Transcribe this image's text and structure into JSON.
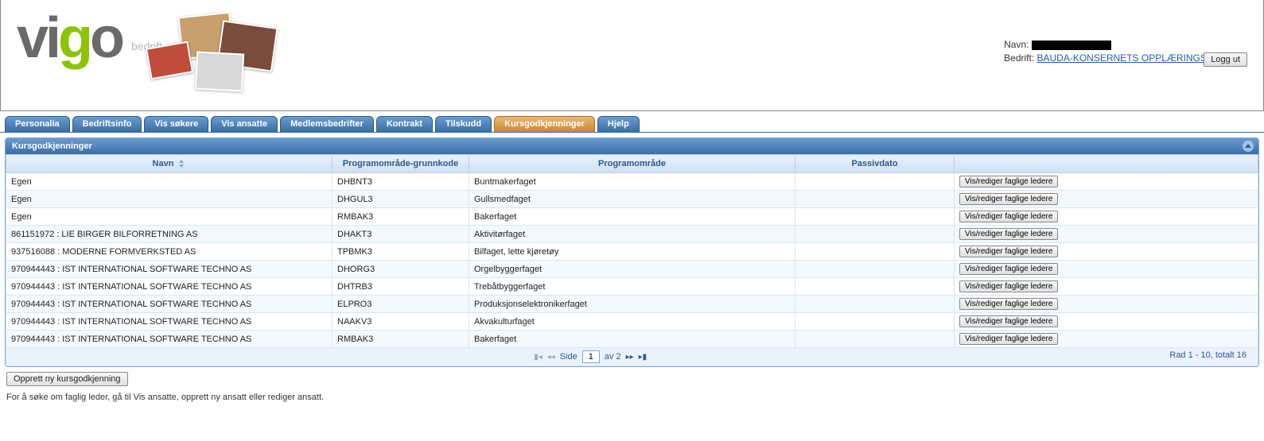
{
  "header": {
    "navn_label": "Navn:",
    "bedrift_label": "Bedrift:",
    "bedrift_link": "BAUDA-KONSERNETS OPPLÆRINGSKONTOR",
    "logout": "Logg ut",
    "logo_sub": "bedrift"
  },
  "tabs": [
    {
      "label": "Personalia"
    },
    {
      "label": "Bedriftsinfo"
    },
    {
      "label": "Vis søkere"
    },
    {
      "label": "Vis ansatte"
    },
    {
      "label": "Medlemsbedrifter"
    },
    {
      "label": "Kontrakt"
    },
    {
      "label": "Tilskudd"
    },
    {
      "label": "Kursgodkjenninger",
      "active": true
    },
    {
      "label": "Hjelp"
    }
  ],
  "panel": {
    "title": "Kursgodkjenninger",
    "columns": {
      "navn": "Navn",
      "grunnkode": "Programområde-grunnkode",
      "programomrade": "Programområde",
      "passivdato": "Passivdato"
    },
    "action_label": "Vis/rediger faglige ledere",
    "rows": [
      {
        "navn": "Egen",
        "grunn": "DHBNT3",
        "prog": "Buntmakerfaget",
        "passiv": ""
      },
      {
        "navn": "Egen",
        "grunn": "DHGUL3",
        "prog": "Gullsmedfaget",
        "passiv": ""
      },
      {
        "navn": "Egen",
        "grunn": "RMBAK3",
        "prog": "Bakerfaget",
        "passiv": ""
      },
      {
        "navn": "861151972 : LIE BIRGER BILFORRETNING AS",
        "grunn": "DHAKT3",
        "prog": "Aktivitørfaget",
        "passiv": ""
      },
      {
        "navn": "937516088 : MODERNE FORMVERKSTED AS",
        "grunn": "TPBMK3",
        "prog": "Bilfaget, lette kjøretøy",
        "passiv": ""
      },
      {
        "navn": "970944443 : IST INTERNATIONAL SOFTWARE TECHNO AS",
        "grunn": "DHORG3",
        "prog": "Orgelbyggerfaget",
        "passiv": ""
      },
      {
        "navn": "970944443 : IST INTERNATIONAL SOFTWARE TECHNO AS",
        "grunn": "DHTRB3",
        "prog": "Trebåtbyggerfaget",
        "passiv": ""
      },
      {
        "navn": "970944443 : IST INTERNATIONAL SOFTWARE TECHNO AS",
        "grunn": "ELPRO3",
        "prog": "Produksjonselektronikerfaget",
        "passiv": ""
      },
      {
        "navn": "970944443 : IST INTERNATIONAL SOFTWARE TECHNO AS",
        "grunn": "NAAKV3",
        "prog": "Akvakulturfaget",
        "passiv": ""
      },
      {
        "navn": "970944443 : IST INTERNATIONAL SOFTWARE TECHNO AS",
        "grunn": "RMBAK3",
        "prog": "Bakerfaget",
        "passiv": ""
      }
    ],
    "pager": {
      "side_label": "Side",
      "current": "1",
      "av_label": "av 2",
      "summary": "Rad 1 - 10, totalt 16"
    }
  },
  "below": {
    "create_button": "Opprett ny kursgodkjenning",
    "help": "For å søke om faglig leder, gå til Vis ansatte, opprett ny ansatt eller rediger ansatt."
  },
  "colors": {
    "tab_bg": "#3a6ea5",
    "tab_active": "#c88830",
    "panel_border": "#7fa8d0",
    "link": "#2060c0"
  }
}
